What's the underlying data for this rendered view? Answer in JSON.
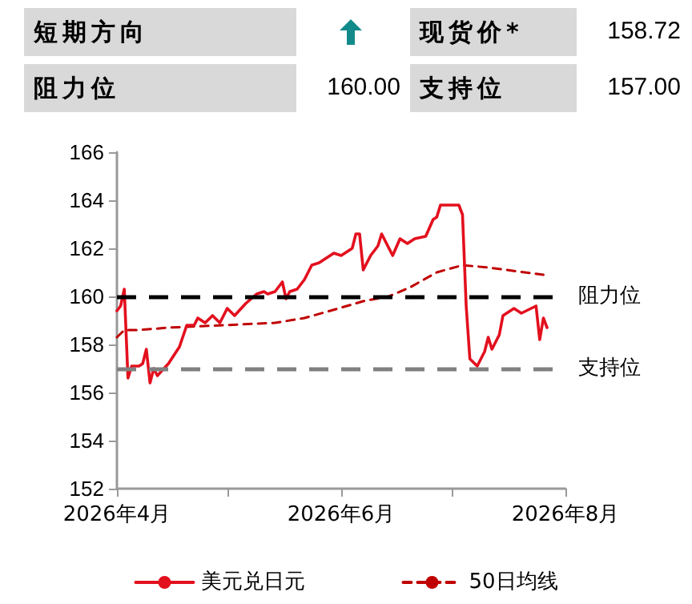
{
  "chart_data": [
    {
      "type": "other",
      "annotations": [
        "短期方向",
        "现货价*",
        "158.72",
        "阻力位",
        "160.00",
        "支持位",
        "157.00"
      ]
    },
    {
      "type": "line",
      "xlim": [
        "2026-04-01",
        "2026-08-01"
      ],
      "xticks": [
        {
          "value": "2026-04-01",
          "label": "2026年4月"
        },
        {
          "value": "2026-05-01",
          "label": null
        },
        {
          "value": "2026-06-01",
          "label": "2026年6月"
        },
        {
          "value": "2026-07-01",
          "label": null
        },
        {
          "value": "2026-08-01",
          "label": "2026年8月"
        }
      ],
      "ylim": [
        152,
        166
      ],
      "yticks": [
        152,
        154,
        156,
        158,
        160,
        162,
        164,
        166
      ],
      "grid": false,
      "legend": "bottom",
      "marker": "none",
      "series": [
        {
          "name": "美元兑日元",
          "color": "#e3101e",
          "line_style": "solid",
          "x": [
            "2026-04-01",
            "2026-04-02",
            "2026-04-03",
            "2026-04-04",
            "2026-04-05",
            "2026-04-07",
            "2026-04-08",
            "2026-04-09",
            "2026-04-10",
            "2026-04-11",
            "2026-04-12",
            "2026-04-15",
            "2026-04-18",
            "2026-04-20",
            "2026-04-22",
            "2026-04-23",
            "2026-04-25",
            "2026-04-27",
            "2026-04-29",
            "2026-05-01",
            "2026-05-03",
            "2026-05-06",
            "2026-05-09",
            "2026-05-11",
            "2026-05-12",
            "2026-05-14",
            "2026-05-16",
            "2026-05-17",
            "2026-05-18",
            "2026-05-20",
            "2026-05-22",
            "2026-05-24",
            "2026-05-26",
            "2026-05-27",
            "2026-05-30",
            "2026-06-01",
            "2026-06-04",
            "2026-06-05",
            "2026-06-06",
            "2026-06-07",
            "2026-06-09",
            "2026-06-11",
            "2026-06-12",
            "2026-06-15",
            "2026-06-17",
            "2026-06-19",
            "2026-06-21",
            "2026-06-24",
            "2026-06-26",
            "2026-06-27",
            "2026-06-28",
            "2026-07-01",
            "2026-07-03",
            "2026-07-04",
            "2026-07-05",
            "2026-07-06",
            "2026-07-08",
            "2026-07-10",
            "2026-07-11",
            "2026-07-12",
            "2026-07-14",
            "2026-07-15",
            "2026-07-16",
            "2026-07-18",
            "2026-07-20",
            "2026-07-24",
            "2026-07-25",
            "2026-07-26",
            "2026-07-27"
          ],
          "values": [
            159.4,
            159.6,
            160.3,
            156.6,
            157.1,
            157.1,
            157.2,
            157.8,
            156.4,
            157.0,
            156.7,
            157.2,
            157.9,
            158.8,
            158.8,
            159.1,
            158.9,
            159.2,
            158.9,
            159.5,
            159.2,
            159.7,
            160.1,
            160.2,
            160.1,
            160.2,
            160.6,
            159.9,
            160.2,
            160.3,
            160.7,
            161.3,
            161.4,
            161.5,
            161.8,
            161.7,
            162.0,
            162.6,
            162.6,
            161.1,
            161.7,
            162.1,
            162.6,
            161.7,
            162.4,
            162.2,
            162.4,
            162.5,
            163.2,
            163.3,
            163.8,
            163.8,
            163.8,
            163.4,
            159.6,
            157.4,
            157.1,
            157.7,
            158.3,
            157.8,
            158.4,
            159.2,
            159.3,
            159.5,
            159.3,
            159.6,
            158.2,
            159.1,
            158.7
          ]
        },
        {
          "name": "50日均线",
          "color": "#c00000",
          "line_style": "dashed",
          "x": [
            "2026-04-01",
            "2026-04-03",
            "2026-04-07",
            "2026-04-15",
            "2026-04-30",
            "2026-05-14",
            "2026-05-22",
            "2026-05-29",
            "2026-06-07",
            "2026-06-14",
            "2026-06-20",
            "2026-06-27",
            "2026-07-04",
            "2026-07-11",
            "2026-07-26"
          ],
          "values": [
            158.3,
            158.6,
            158.6,
            158.7,
            158.8,
            158.9,
            159.1,
            159.4,
            159.8,
            160.0,
            160.4,
            161.0,
            161.3,
            161.2,
            160.9
          ]
        }
      ],
      "ref_lines": [
        {
          "axis": "y",
          "value": 160,
          "label": "阻力位",
          "color": "#000000",
          "line_style": "dashed"
        },
        {
          "axis": "y",
          "value": 157,
          "label": "支持位",
          "color": "#808080",
          "line_style": "dashed"
        }
      ]
    }
  ]
}
